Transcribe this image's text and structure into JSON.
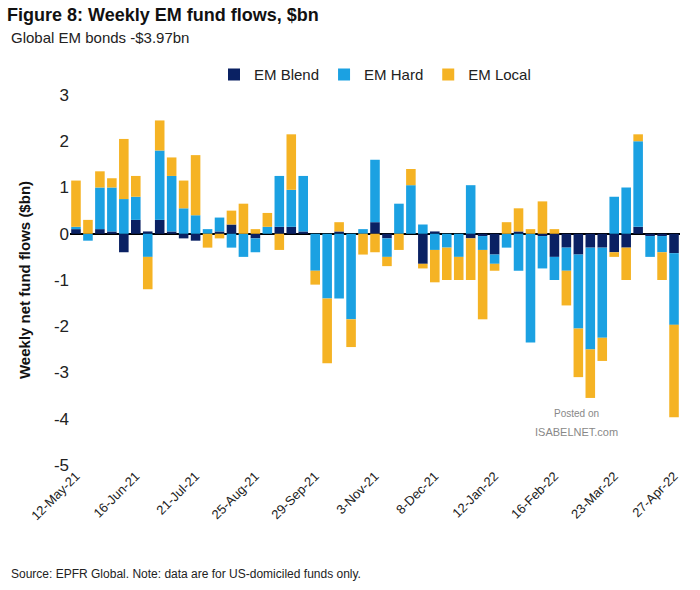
{
  "chart_data": {
    "type": "bar",
    "title": "Figure 8: Weekly EM fund flows, $bn",
    "subtitle": "Global EM bonds -$3.97bn",
    "ylabel": "Weekly net fund flows ($bn)",
    "categories": [
      "12-May-21",
      null,
      null,
      null,
      null,
      "16-Jun-21",
      null,
      null,
      null,
      null,
      "21-Jul-21",
      null,
      null,
      null,
      null,
      "25-Aug-21",
      null,
      null,
      null,
      null,
      "29-Sep-21",
      null,
      null,
      null,
      null,
      "3-Nov-21",
      null,
      null,
      null,
      null,
      "8-Dec-21",
      null,
      null,
      null,
      null,
      "12-Jan-22",
      null,
      null,
      null,
      null,
      "16-Feb-22",
      null,
      null,
      null,
      null,
      "23-Mar-22",
      null,
      null,
      null,
      null,
      "27-Apr-22"
    ],
    "series": [
      {
        "name": "EM Blend",
        "color": "#0a2163",
        "values": [
          0.1,
          0,
          0.1,
          0.05,
          -0.4,
          0.3,
          0.05,
          0.3,
          0.05,
          -0.1,
          -0.15,
          0,
          0.05,
          0.2,
          0,
          -0.1,
          0,
          0.15,
          0.15,
          0.05,
          0,
          0,
          0.05,
          0,
          0,
          0.25,
          -0.1,
          0,
          0,
          -0.65,
          0.05,
          0,
          0,
          -0.1,
          -0.05,
          -0.45,
          0,
          0.05,
          0,
          -0.05,
          -0.5,
          -0.3,
          -0.45,
          -0.3,
          -0.3,
          -0.4,
          -0.3,
          0.15,
          -0.05,
          -0.05,
          -0.42
        ]
      },
      {
        "name": "EM Hard",
        "color": "#1ba1e2",
        "values": [
          0.05,
          -0.15,
          0.9,
          0.95,
          0.75,
          0.5,
          -0.5,
          1.5,
          1.2,
          0.55,
          0.4,
          0.1,
          0.3,
          -0.3,
          -0.5,
          -0.3,
          0.15,
          1.1,
          0.8,
          1.2,
          -0.8,
          -1.4,
          -1.4,
          -1.85,
          0.1,
          1.35,
          -0.4,
          0.65,
          1.05,
          0.2,
          -0.35,
          -0.3,
          -0.5,
          1.05,
          -0.3,
          -0.2,
          -0.3,
          -0.8,
          -2.35,
          -0.7,
          -0.5,
          -0.5,
          -1.6,
          -2.2,
          -1.95,
          0.8,
          1.0,
          1.85,
          -0.45,
          -0.35,
          -1.55
        ]
      },
      {
        "name": "EM Local",
        "color": "#f5b324",
        "values": [
          1.0,
          0.3,
          0.35,
          0.2,
          1.3,
          0.45,
          -0.7,
          0.65,
          0.4,
          0.6,
          1.3,
          -0.3,
          -0.1,
          0.3,
          0.65,
          0.1,
          0.3,
          -0.35,
          1.2,
          0,
          -0.3,
          -1.4,
          0.2,
          -0.6,
          -0.45,
          -0.4,
          -0.2,
          -0.35,
          0.35,
          -0.1,
          -0.7,
          -0.7,
          -0.5,
          -0.9,
          -1.5,
          -0.15,
          0.25,
          0.5,
          0.1,
          0.7,
          0.1,
          -0.75,
          -1.05,
          -1.05,
          -0.5,
          -0.1,
          -0.7,
          0.15,
          0,
          -0.6,
          -2.0
        ]
      }
    ],
    "ylim": [
      -5,
      3
    ],
    "yticks": [
      -5,
      -4,
      -3,
      -2,
      -1,
      0,
      1,
      2,
      3
    ],
    "stacked": true,
    "grid": false,
    "legend": "top",
    "annotations": [
      "Source: EPFR Global. Note: data are for US-domiciled funds only.",
      "Posted on",
      "ISABELNET.com"
    ]
  }
}
